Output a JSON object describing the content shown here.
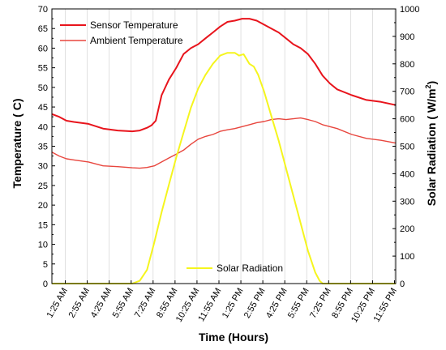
{
  "chart_data": {
    "type": "line",
    "xlabel": "Time (Hours)",
    "ylabel_left": "Temperature ( C)",
    "ylabel_right_main": "Solar Radiation ( W/m",
    "ylabel_right_sup": "2",
    "ylabel_right_end": ")",
    "ylim_left": [
      0,
      70
    ],
    "ylim_right": [
      0,
      1000
    ],
    "yticks_left": [
      0,
      5,
      10,
      15,
      20,
      25,
      30,
      35,
      40,
      45,
      50,
      55,
      60,
      65,
      70
    ],
    "yticks_right": [
      0,
      100,
      200,
      300,
      400,
      500,
      600,
      700,
      800,
      900,
      1000
    ],
    "x_hour_range": [
      0.5,
      24.0
    ],
    "xtick_hours": [
      1.4167,
      2.9167,
      4.4167,
      5.9167,
      7.4167,
      8.9167,
      10.4167,
      11.9167,
      13.4167,
      14.9167,
      16.4167,
      17.9167,
      19.4167,
      20.9167,
      22.4167,
      23.9167
    ],
    "xtick_labels": [
      "1:25 AM",
      "2:55 AM",
      "4:25 AM",
      "5:55 AM",
      "7:25 AM",
      "8:55 AM",
      "10:25 AM",
      "11:55 AM",
      "1:25 PM",
      "2:55 PM",
      "4:25 PM",
      "5:55 PM",
      "7:25 PM",
      "8:55 PM",
      "10:25 PM",
      "11:55 PM"
    ],
    "grid": "vertical",
    "legend_position": "top-left and bottom-center",
    "series": [
      {
        "name": "Sensor Temperature",
        "axis": "left",
        "color": "#e8141c",
        "x": [
          0.5,
          1.0,
          1.5,
          2.0,
          3.0,
          4.0,
          5.0,
          5.5,
          6.0,
          6.5,
          7.0,
          7.3,
          7.6,
          8.0,
          8.5,
          9.0,
          9.5,
          10.0,
          10.5,
          11.0,
          11.5,
          12.0,
          12.5,
          13.0,
          13.5,
          14.0,
          14.5,
          15.0,
          15.5,
          16.0,
          16.5,
          17.0,
          17.5,
          18.0,
          18.5,
          19.0,
          19.5,
          20.0,
          21.0,
          22.0,
          23.0,
          24.0
        ],
        "y": [
          43.2,
          42.5,
          41.5,
          41.2,
          40.7,
          39.5,
          39.0,
          38.9,
          38.8,
          39.0,
          39.7,
          40.3,
          41.5,
          48.0,
          52.0,
          55.0,
          58.5,
          60.0,
          61.0,
          62.5,
          64.0,
          65.5,
          66.7,
          67.0,
          67.5,
          67.5,
          67.0,
          66.0,
          65.0,
          64.0,
          62.5,
          61.0,
          60.0,
          58.5,
          56.0,
          53.0,
          51.0,
          49.5,
          48.0,
          46.8,
          46.3,
          45.5
        ]
      },
      {
        "name": "Ambient Temperature",
        "axis": "left",
        "color": "#e8463e",
        "x": [
          0.5,
          1.0,
          1.5,
          2.0,
          3.0,
          4.0,
          5.0,
          6.0,
          6.5,
          7.0,
          7.5,
          8.0,
          8.5,
          9.0,
          9.5,
          10.0,
          10.5,
          11.0,
          11.5,
          12.0,
          12.5,
          13.0,
          13.5,
          14.0,
          14.5,
          15.0,
          15.5,
          16.0,
          16.5,
          17.0,
          17.5,
          18.0,
          18.5,
          19.0,
          20.0,
          21.0,
          22.0,
          23.0,
          24.0
        ],
        "y": [
          33.5,
          32.5,
          31.8,
          31.5,
          31.0,
          30.0,
          29.8,
          29.5,
          29.4,
          29.6,
          30.0,
          31.0,
          32.0,
          33.0,
          34.0,
          35.5,
          36.8,
          37.5,
          38.0,
          38.8,
          39.2,
          39.5,
          40.0,
          40.5,
          41.0,
          41.3,
          41.8,
          42.0,
          41.8,
          42.0,
          42.2,
          41.8,
          41.3,
          40.5,
          39.5,
          38.0,
          37.0,
          36.5,
          35.8
        ]
      },
      {
        "name": "Solar Radiation",
        "axis": "right",
        "color": "#f5f51e",
        "x": [
          0.5,
          5.5,
          6.0,
          6.5,
          7.0,
          7.5,
          8.0,
          8.5,
          9.0,
          9.5,
          10.0,
          10.5,
          11.0,
          11.5,
          12.0,
          12.5,
          13.0,
          13.3,
          13.6,
          14.0,
          14.3,
          14.6,
          15.0,
          15.5,
          16.0,
          16.5,
          17.0,
          17.5,
          18.0,
          18.5,
          18.8,
          19.0,
          19.5,
          24.0
        ],
        "y": [
          0,
          0,
          0,
          10,
          50,
          150,
          260,
          360,
          460,
          550,
          640,
          710,
          760,
          800,
          830,
          840,
          840,
          830,
          835,
          800,
          790,
          760,
          700,
          610,
          520,
          420,
          320,
          220,
          120,
          40,
          10,
          0,
          0,
          0
        ]
      }
    ]
  }
}
